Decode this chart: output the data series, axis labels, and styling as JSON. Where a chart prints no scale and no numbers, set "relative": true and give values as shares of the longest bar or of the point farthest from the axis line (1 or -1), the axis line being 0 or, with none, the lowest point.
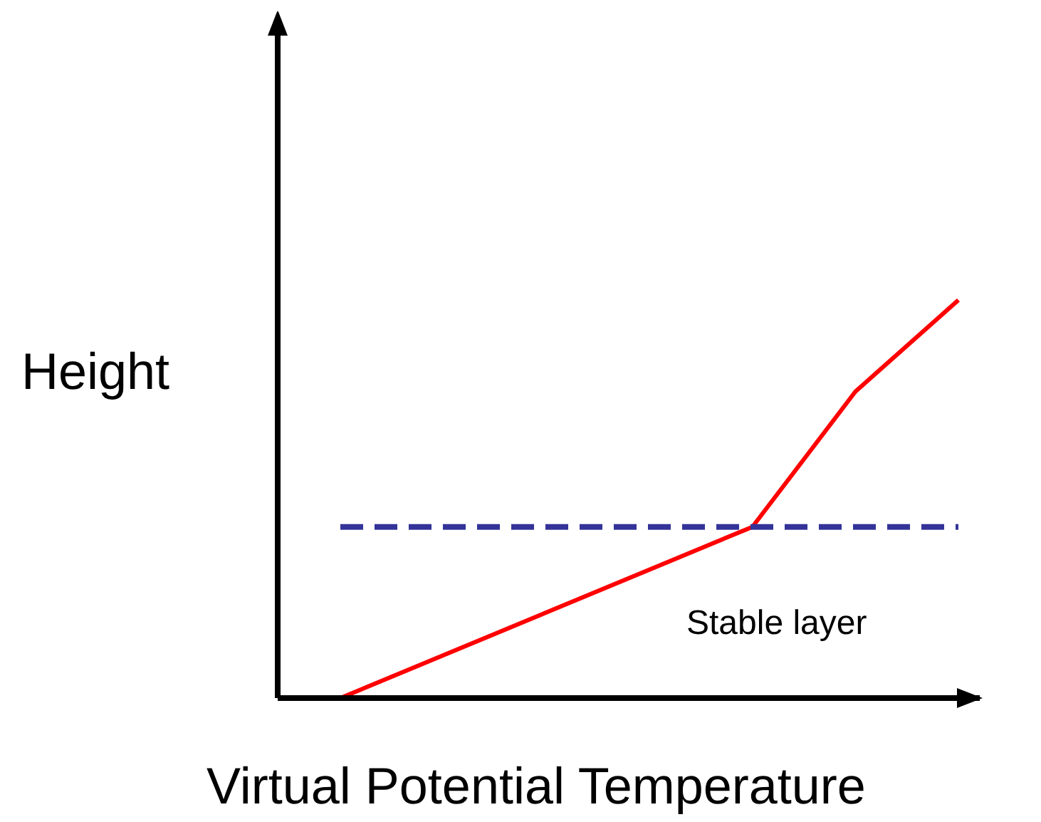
{
  "chart_data": {
    "type": "line",
    "relative": true,
    "xlabel": "Virtual Potential Temperature",
    "ylabel": "Height",
    "categories": [
      null,
      null,
      null,
      null,
      null,
      null,
      null
    ],
    "series": [
      {
        "color": "#ff0000",
        "values": [
          0,
          null,
          null,
          null,
          0.43,
          0.77,
          1
        ]
      },
      {
        "color": "#333399",
        "line_style": "dashed",
        "values": [
          0.43,
          0.43,
          0.43,
          0.43,
          0.43,
          0.43,
          0.43
        ]
      }
    ],
    "annotations": [
      {
        "text": "Stable layer"
      }
    ],
    "marker": "none",
    "grid": false,
    "legend": false
  }
}
